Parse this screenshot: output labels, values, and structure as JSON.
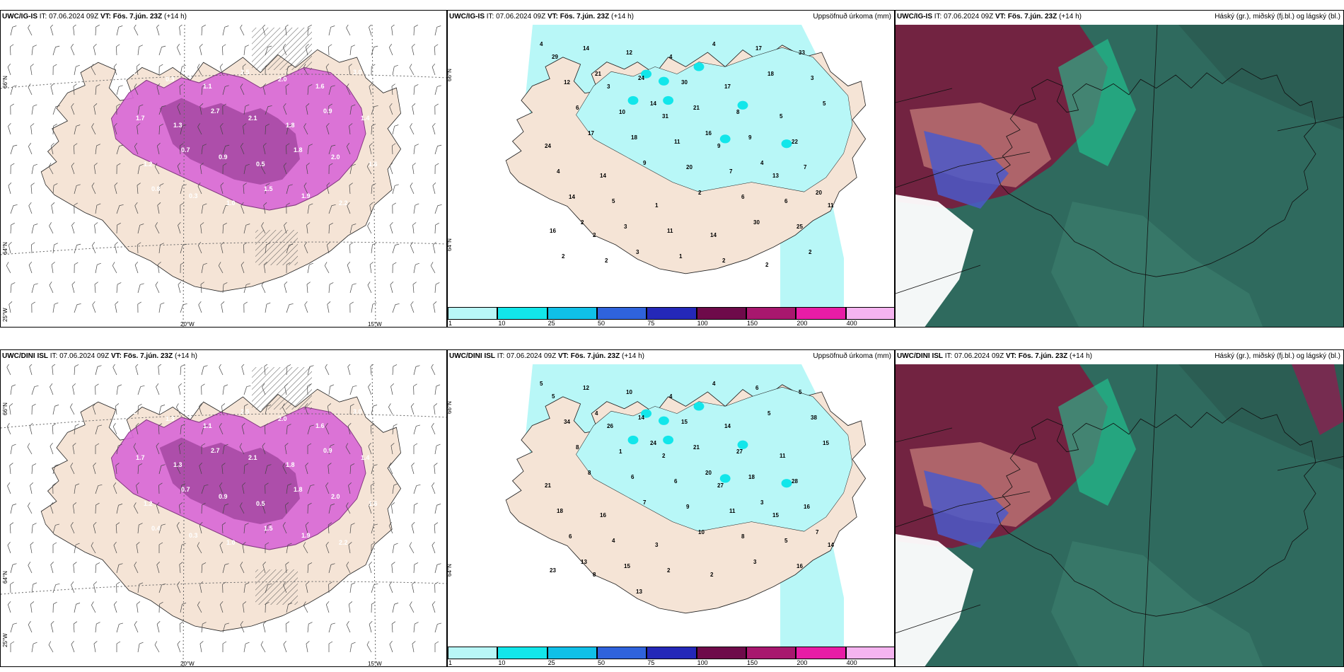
{
  "rows": [
    {
      "model": "UWC/IG-IS",
      "panels": [
        {
          "id": "ig-wind",
          "model": "UWC/IG-IS",
          "it_label": "IT:",
          "it_value": "07.06.2024 09Z",
          "vt_label": "VT:",
          "vt_value": "Fös. 7.jún. 23Z",
          "lead": "(+14 h)",
          "title_right": ""
        },
        {
          "id": "ig-precip",
          "model": "UWC/IG-IS",
          "it_label": "IT:",
          "it_value": "07.06.2024 09Z",
          "vt_label": "VT:",
          "vt_value": "Fös. 7.jún. 23Z",
          "lead": "(+14 h)",
          "title_right": "Uppsöfnuð úrkoma (mm)"
        },
        {
          "id": "ig-cloud",
          "model": "UWC/IG-IS",
          "it_label": "IT:",
          "it_value": "07.06.2024 09Z",
          "vt_label": "VT:",
          "vt_value": "Fös. 7.jún. 23Z",
          "lead": "(+14 h)",
          "title_right": "Háský (gr.), miðský (fj.bl.) og lágský (bl.)"
        }
      ]
    },
    {
      "model": "UWC/DINI ISL",
      "panels": [
        {
          "id": "dini-wind",
          "model": "UWC/DINI ISL",
          "it_label": "IT:",
          "it_value": "07.06.2024 09Z",
          "vt_label": "VT:",
          "vt_value": "Fös. 7.jún. 23Z",
          "lead": "(+14 h)",
          "title_right": ""
        },
        {
          "id": "dini-precip",
          "model": "UWC/DINI ISL",
          "it_label": "IT:",
          "it_value": "07.06.2024 09Z",
          "vt_label": "VT:",
          "vt_value": "Fös. 7.jún. 23Z",
          "lead": "(+14 h)",
          "title_right": "Uppsöfnuð úrkoma (mm)"
        },
        {
          "id": "dini-cloud",
          "model": "UWC/DINI ISL",
          "it_label": "IT:",
          "it_value": "07.06.2024 09Z",
          "vt_label": "VT:",
          "vt_value": "Fös. 7.jún. 23Z",
          "lead": "(+14 h)",
          "title_right": "Háský (gr.), miðský (fj.bl.) og lágský (bl.)"
        }
      ]
    }
  ],
  "axis_labels": {
    "lat_66": "66°N",
    "lat_64": "64°N",
    "lon_25": "25°W",
    "lon_20": "20°W",
    "lon_15": "15°W"
  },
  "colorbar": {
    "labels": [
      "1",
      "10",
      "25",
      "50",
      "75",
      "100",
      "150",
      "200",
      "400"
    ],
    "colors": [
      "#b8f7f7",
      "#12e6ea",
      "#10c0e8",
      "#2f63dc",
      "#2428b8",
      "#6e0a4a",
      "#a8176e",
      "#e81ca6",
      "#f5b4f0"
    ]
  },
  "precip_values_ig": [
    "4",
    "14",
    "12",
    "4",
    "4",
    "17",
    "33",
    "29",
    "21",
    "24",
    "30",
    "17",
    "18",
    "3",
    "12",
    "3",
    "14",
    "21",
    "8",
    "5",
    "5",
    "6",
    "10",
    "31",
    "16",
    "9",
    "22",
    "24",
    "17",
    "18",
    "11",
    "9",
    "4",
    "7",
    "4",
    "14",
    "9",
    "20",
    "7",
    "13",
    "20",
    "14",
    "5",
    "1",
    "2",
    "6",
    "6",
    "11",
    "2",
    "3",
    "11",
    "14",
    "30",
    "25",
    "16",
    "2",
    "3",
    "1",
    "2",
    "2",
    "2",
    "2",
    "2"
  ],
  "precip_values_dini": [
    "5",
    "12",
    "10",
    "4",
    "4",
    "6",
    "5",
    "5",
    "4",
    "14",
    "15",
    "14",
    "5",
    "38",
    "34",
    "26",
    "24",
    "21",
    "27",
    "11",
    "15",
    "8",
    "1",
    "2",
    "20",
    "18",
    "28",
    "21",
    "8",
    "6",
    "6",
    "27",
    "3",
    "16",
    "18",
    "16",
    "7",
    "9",
    "11",
    "15",
    "7",
    "6",
    "4",
    "3",
    "10",
    "8",
    "5",
    "14",
    "13",
    "15",
    "2",
    "2",
    "3",
    "16",
    "23",
    "8",
    "13"
  ],
  "wind_values_ig": [
    "0.2",
    "0.3",
    "1.1",
    "2.5",
    "2.0",
    "1.6",
    "3.0",
    "1.7",
    "1.3",
    "2.7",
    "2.1",
    "1.8",
    "0.9",
    "1.4",
    "1.2",
    "0.7",
    "0.9",
    "0.5",
    "1.8",
    "2.0",
    "1.6",
    "0.8",
    "0.3",
    "1.0",
    "1.5",
    "1.9",
    "2.2"
  ],
  "wind_values_dini": [
    "0.2",
    "1.3",
    "1.1",
    "2.5",
    "2.0",
    "1.6",
    "3.0",
    "1.7",
    "1.3",
    "2.7",
    "2.1",
    "1.8",
    "0.9",
    "1.4",
    "1.2",
    "0.7",
    "0.9",
    "0.5",
    "1.8",
    "2.0",
    "1.6",
    "0.4",
    "0.3",
    "1.0",
    "1.5",
    "1.9",
    "2.2"
  ]
}
